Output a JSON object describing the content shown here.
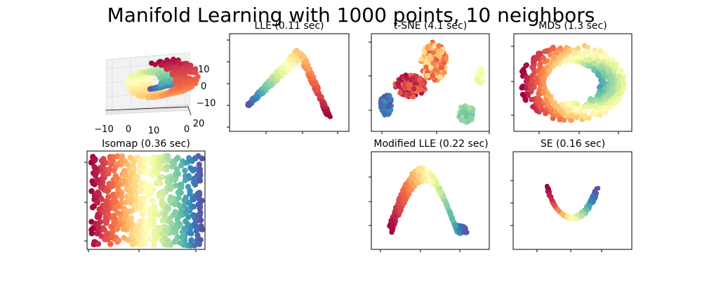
{
  "figure": {
    "title": "Manifold Learning with 1000 points, 10 neighbors"
  },
  "chart_data": [
    {
      "type": "scatter",
      "subtype": "3d",
      "panel": "swiss-roll-3d",
      "title": "",
      "colormap": "Spectral",
      "x_tick_labels": [
        "−10",
        "0",
        "10"
      ],
      "y_tick_labels": [
        "0",
        "20"
      ],
      "z_tick_labels": [
        "10",
        "0",
        "−10"
      ],
      "xlim": [
        -11,
        13
      ],
      "ylim": [
        0,
        21
      ],
      "zlim": [
        -12,
        15
      ],
      "grid": true,
      "points_described": "swiss roll spiral colored by position along the roll"
    },
    {
      "type": "scatter",
      "panel": "lle",
      "title": "LLE (0.11 sec)",
      "colormap": "Spectral",
      "shape": "inverted V arc",
      "tick_labels": false
    },
    {
      "type": "scatter",
      "panel": "tsne",
      "title": "t-SNE (4.1 sec)",
      "colormap": "Spectral",
      "shape": "separated clusters",
      "tick_labels": false
    },
    {
      "type": "scatter",
      "panel": "mds",
      "title": "MDS (1.3 sec)",
      "colormap": "Spectral",
      "shape": "ring",
      "tick_labels": false
    },
    {
      "type": "scatter",
      "panel": "isomap",
      "title": "Isomap (0.36 sec)",
      "colormap": "Spectral",
      "shape": "unrolled rectangle",
      "tick_labels": false
    },
    {
      "type": "scatter",
      "panel": "modified-lle",
      "title": "Modified LLE (0.22 sec)",
      "colormap": "Spectral",
      "shape": "arch",
      "tick_labels": false
    },
    {
      "type": "scatter",
      "panel": "se",
      "title": "SE (0.16 sec)",
      "colormap": "Spectral",
      "shape": "U curve",
      "tick_labels": false
    }
  ]
}
